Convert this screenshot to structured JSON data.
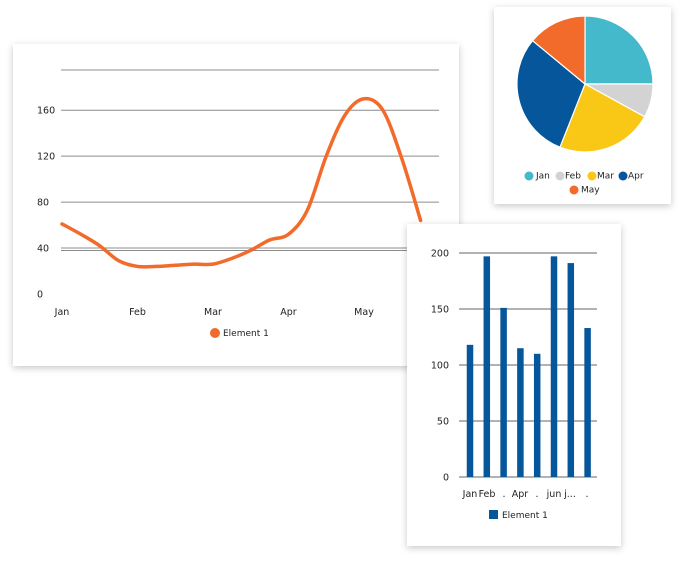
{
  "chart_data": [
    {
      "type": "line",
      "categories": [
        "Jan",
        "Feb",
        "Mar",
        "Apr",
        "May"
      ],
      "x": [
        0,
        0.25,
        0.5,
        0.75,
        1,
        1.25,
        1.5,
        1.75,
        2,
        2.25,
        2.5,
        2.75,
        3,
        3.25,
        3.5,
        3.75,
        4,
        4.25,
        4.5,
        4.75
      ],
      "series": [
        {
          "name": "Element 1",
          "values": [
            61,
            52,
            42,
            29,
            24,
            24,
            25,
            26,
            26,
            31,
            38,
            47,
            52,
            73,
            120,
            156,
            170,
            160,
            118,
            64
          ]
        }
      ],
      "ylim": [
        0,
        195
      ],
      "yticks": [
        0,
        40,
        80,
        120,
        160
      ],
      "grid": true,
      "legend_position": "bottom",
      "colors": [
        "#f26b2a"
      ]
    },
    {
      "type": "pie",
      "labels": [
        "Jan",
        "Feb",
        "Mar",
        "Apr",
        "May"
      ],
      "values": [
        25,
        8,
        23,
        30,
        14
      ],
      "colors": [
        "#44b9cc",
        "#d3d3d3",
        "#f9c817",
        "#05569a",
        "#f26b2a"
      ],
      "legend_position": "bottom"
    },
    {
      "type": "bar",
      "categories": [
        "Jan",
        "Feb",
        ".",
        "Apr",
        ".",
        "jun",
        "j...",
        "."
      ],
      "series": [
        {
          "name": "Element 1",
          "values": [
            118,
            197,
            151,
            115,
            110,
            197,
            191,
            133
          ]
        }
      ],
      "ylim": [
        0,
        200
      ],
      "yticks": [
        0,
        50,
        100,
        150,
        200
      ],
      "grid": true,
      "legend_position": "bottom",
      "colors": [
        "#05569a"
      ]
    }
  ]
}
